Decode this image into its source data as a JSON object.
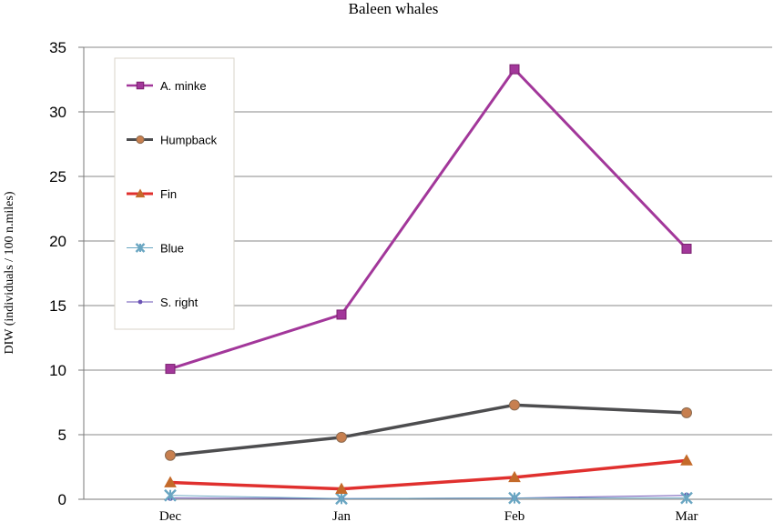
{
  "chart_data": {
    "type": "line",
    "title": "Baleen whales",
    "xlabel": "",
    "ylabel": "DIW  (individuals / 100 n.miles)",
    "categories": [
      "Dec",
      "Jan",
      "Feb",
      "Mar"
    ],
    "ylim": [
      0,
      35
    ],
    "yticks": [
      "0",
      "5",
      "10",
      "15",
      "20",
      "25",
      "30",
      "35"
    ],
    "grid": true,
    "legend_position": "top-left",
    "series": [
      {
        "name": "A. minke",
        "values": [
          10.1,
          14.3,
          33.3,
          19.4
        ],
        "color": "#a2379a",
        "marker": "square"
      },
      {
        "name": "Humpback",
        "values": [
          3.4,
          4.8,
          7.3,
          6.7
        ],
        "color": "#4d4d4f",
        "marker": "circle",
        "marker_color": "#c77f4f"
      },
      {
        "name": "Fin",
        "values": [
          1.3,
          0.8,
          1.7,
          3.0
        ],
        "color": "#e0302e",
        "marker": "triangle",
        "marker_color": "#c46a2a"
      },
      {
        "name": "Blue",
        "values": [
          0.3,
          0.05,
          0.1,
          0.1
        ],
        "color": "#6aa6c2",
        "marker": "x"
      },
      {
        "name": "S. right",
        "values": [
          0.1,
          0.05,
          0.1,
          0.3
        ],
        "color": "#6a52b4",
        "marker": "dot"
      }
    ]
  }
}
